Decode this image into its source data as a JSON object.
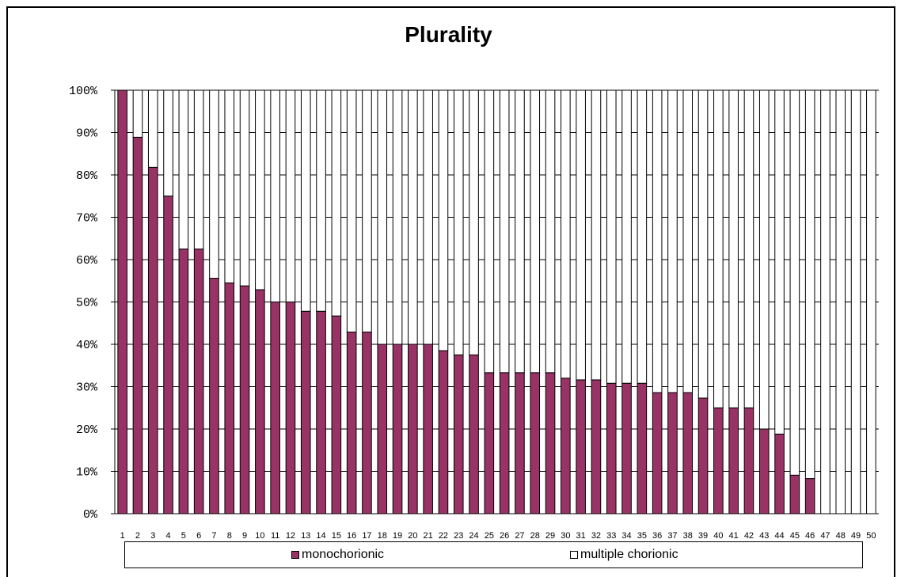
{
  "chart_data": {
    "type": "bar",
    "stacked": true,
    "normalized_percent": true,
    "title": "Plurality",
    "xlabel": "",
    "ylabel": "",
    "ylim": [
      0,
      100
    ],
    "y_ticks": [
      "0%",
      "10%",
      "20%",
      "30%",
      "40%",
      "50%",
      "60%",
      "70%",
      "80%",
      "90%",
      "100%"
    ],
    "categories": [
      "1",
      "2",
      "3",
      "4",
      "5",
      "6",
      "7",
      "8",
      "9",
      "10",
      "11",
      "12",
      "13",
      "14",
      "15",
      "16",
      "17",
      "18",
      "19",
      "20",
      "21",
      "22",
      "23",
      "24",
      "25",
      "26",
      "27",
      "28",
      "29",
      "30",
      "31",
      "32",
      "33",
      "34",
      "35",
      "36",
      "37",
      "38",
      "39",
      "40",
      "41",
      "42",
      "43",
      "44",
      "45",
      "46",
      "47",
      "48",
      "49",
      "50"
    ],
    "series": [
      {
        "name": "monochorionic",
        "color": "#993366",
        "values": [
          100,
          88.9,
          81.8,
          75,
          62.5,
          62.5,
          55.6,
          54.5,
          53.8,
          52.9,
          50,
          50,
          47.8,
          47.8,
          46.7,
          42.9,
          42.9,
          40,
          40,
          40,
          40,
          38.5,
          37.5,
          37.5,
          33.3,
          33.3,
          33.3,
          33.3,
          33.3,
          32,
          31.6,
          31.6,
          30.8,
          30.8,
          30.8,
          28.6,
          28.6,
          28.6,
          27.3,
          25,
          25,
          25,
          20,
          18.8,
          9.1,
          8.3,
          0,
          0,
          0,
          0
        ]
      },
      {
        "name": "multiple chorionic",
        "color": "#ffffff",
        "values": [
          0,
          11.1,
          18.2,
          25,
          37.5,
          37.5,
          44.4,
          45.5,
          46.2,
          47.1,
          50,
          50,
          52.2,
          52.2,
          53.3,
          57.1,
          57.1,
          60,
          60,
          60,
          60,
          61.5,
          62.5,
          62.5,
          66.7,
          66.7,
          66.7,
          66.7,
          66.7,
          68,
          68.4,
          68.4,
          69.2,
          69.2,
          69.2,
          71.4,
          71.4,
          71.4,
          72.7,
          75,
          75,
          75,
          80,
          81.2,
          90.9,
          91.7,
          100,
          100,
          100,
          100
        ]
      }
    ],
    "grid": true,
    "legend_position": "bottom"
  }
}
